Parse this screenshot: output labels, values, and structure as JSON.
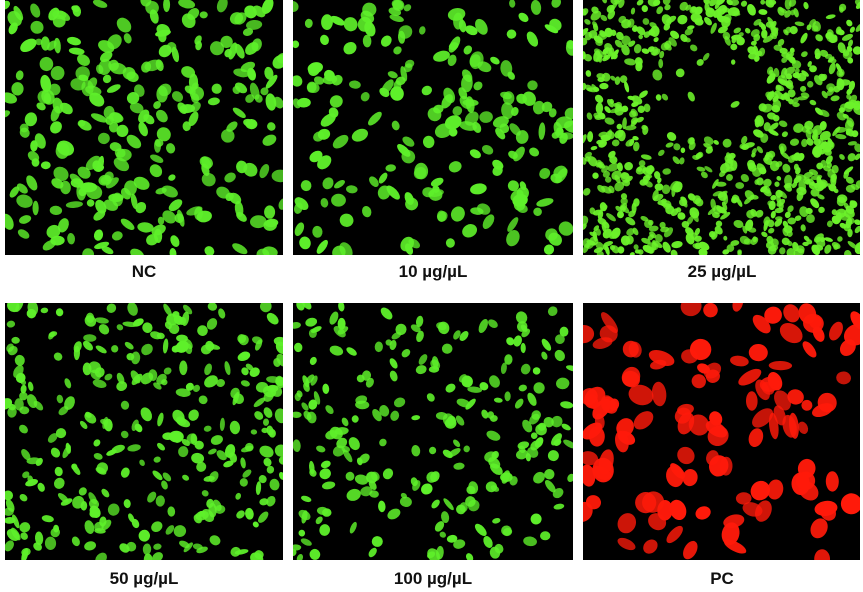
{
  "panels": [
    {
      "label": "NC"
    },
    {
      "label": "10 µg/µL"
    },
    {
      "label": "25 µg/µL"
    },
    {
      "label": "50 µg/µL"
    },
    {
      "label": "100 µg/µL"
    },
    {
      "label": "PC"
    }
  ]
}
